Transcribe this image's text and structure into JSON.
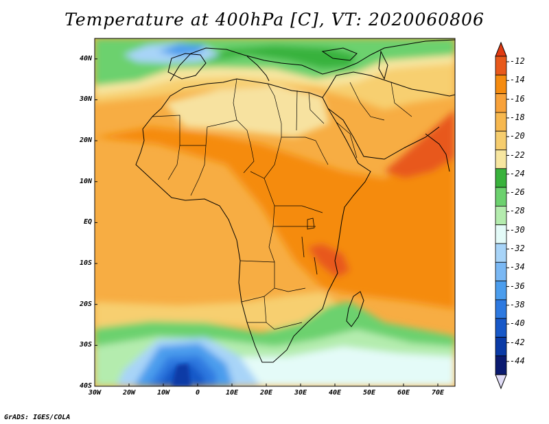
{
  "title": "Temperature at 400hPa [C], VT: 2020060806",
  "credit": "GrADS: IGES/COLA",
  "map": {
    "projection": "lat-lon",
    "lon_range": [
      -30,
      75
    ],
    "lat_range": [
      -40,
      45
    ],
    "lat_ticks": [
      {
        "value": 40,
        "label": "40N"
      },
      {
        "value": 30,
        "label": "30N"
      },
      {
        "value": 20,
        "label": "20N"
      },
      {
        "value": 10,
        "label": "10N"
      },
      {
        "value": 0,
        "label": "EQ"
      },
      {
        "value": -10,
        "label": "10S"
      },
      {
        "value": -20,
        "label": "20S"
      },
      {
        "value": -30,
        "label": "30S"
      },
      {
        "value": -40,
        "label": "40S"
      }
    ],
    "lon_ticks": [
      {
        "value": -30,
        "label": "30W"
      },
      {
        "value": -20,
        "label": "20W"
      },
      {
        "value": -10,
        "label": "10W"
      },
      {
        "value": 0,
        "label": "0"
      },
      {
        "value": 10,
        "label": "10E"
      },
      {
        "value": 20,
        "label": "20E"
      },
      {
        "value": 30,
        "label": "30E"
      },
      {
        "value": 40,
        "label": "40E"
      },
      {
        "value": 50,
        "label": "50E"
      },
      {
        "value": 60,
        "label": "60E"
      },
      {
        "value": 70,
        "label": "70E"
      }
    ]
  },
  "colorbar": {
    "labels": [
      "-12",
      "-14",
      "-16",
      "-18",
      "-20",
      "-22",
      "-24",
      "-26",
      "-28",
      "-30",
      "-32",
      "-34",
      "-36",
      "-38",
      "-40",
      "-42",
      "-44"
    ],
    "colors": [
      "#e8591b",
      "#f58b0f",
      "#f8a23a",
      "#f7b84f",
      "#f6cd6e",
      "#f7e6a0",
      "#39b23c",
      "#6cd16e",
      "#b4ecae",
      "#e4fbf8",
      "#a8d4f8",
      "#7ab8f4",
      "#4b9ded",
      "#2d79e0",
      "#1758c8",
      "#0a3aa6",
      "#0a1a70"
    ],
    "over_color": "#e03a12",
    "under_color": "#e0dcf6"
  }
}
